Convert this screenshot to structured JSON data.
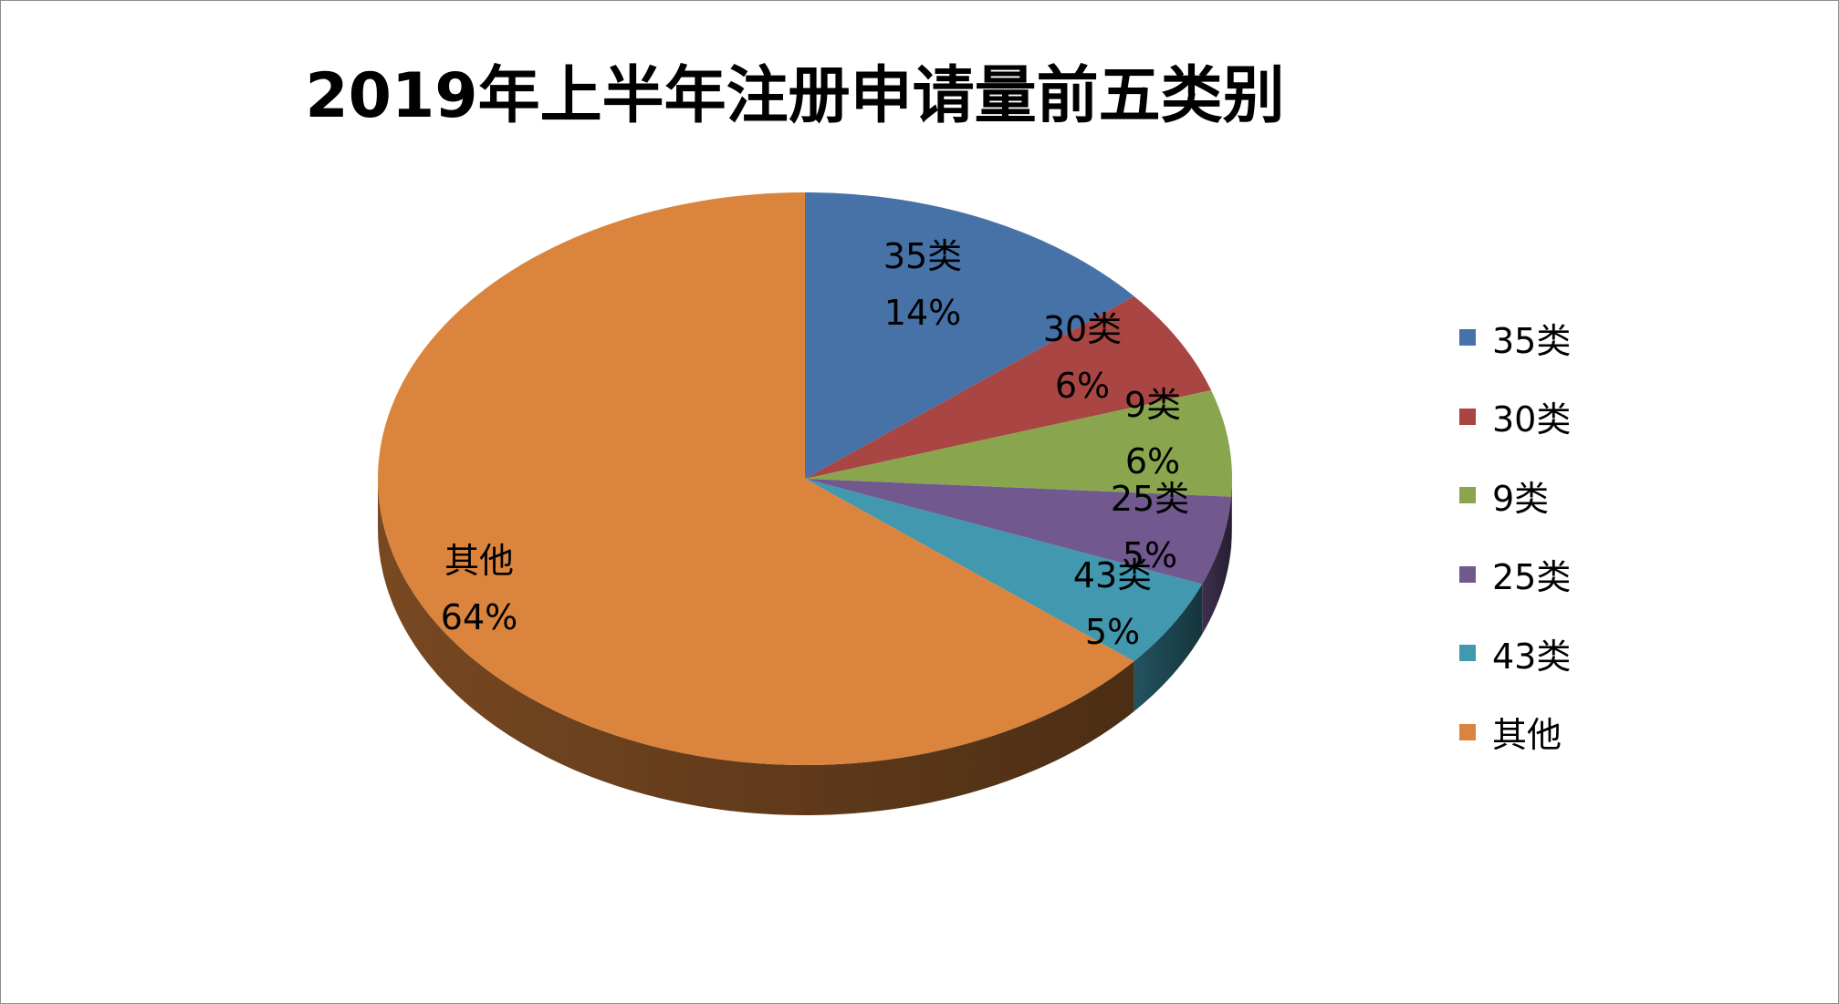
{
  "chart_data": {
    "type": "pie",
    "style": "3d",
    "title": "2019年上半年注册申请量前五类别",
    "categories": [
      "35类",
      "30类",
      "9类",
      "25类",
      "43类",
      "其他"
    ],
    "values": [
      14,
      6,
      6,
      5,
      5,
      64
    ],
    "data_labels": [
      "14%",
      "6%",
      "6%",
      "5%",
      "5%",
      "64%"
    ],
    "colors": [
      "#4672a8",
      "#a94543",
      "#89a54e",
      "#71588f",
      "#4198af",
      "#db843d"
    ],
    "legend_position": "right"
  }
}
